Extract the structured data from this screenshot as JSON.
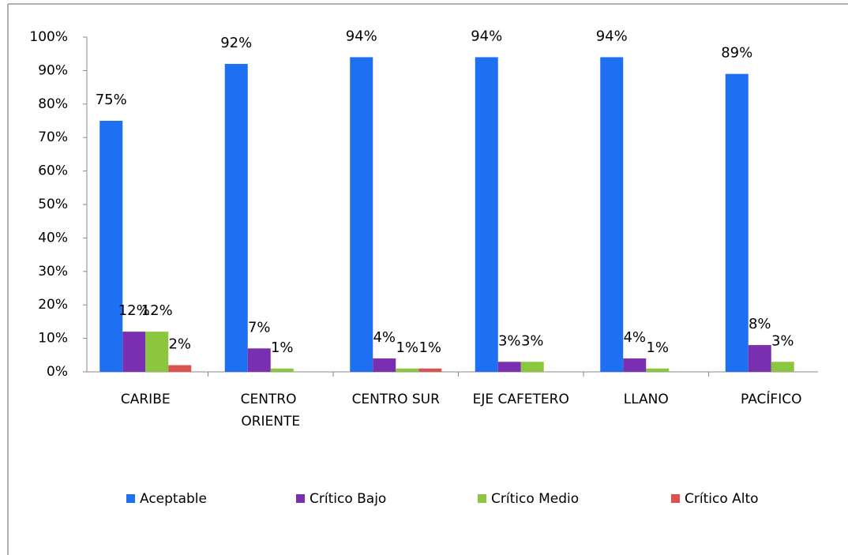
{
  "chart_data": {
    "type": "bar",
    "categories": [
      "CARIBE",
      "CENTRO ORIENTE",
      "CENTRO SUR",
      "EJE CAFETERO",
      "LLANO",
      "PACÍFICO"
    ],
    "series": [
      {
        "name": "Aceptable",
        "color": "#1f6ff2",
        "values": [
          75,
          92,
          94,
          94,
          94,
          89
        ],
        "value_labels": [
          "75%",
          "92%",
          "94%",
          "94%",
          "94%",
          "89%"
        ]
      },
      {
        "name": "Crítico Bajo",
        "color": "#7a2fb0",
        "values": [
          12,
          7,
          4,
          3,
          4,
          8
        ],
        "value_labels": [
          "12%",
          "7%",
          "4%",
          "3%",
          "4%",
          "8%"
        ]
      },
      {
        "name": "Crítico Medio",
        "color": "#8cc63f",
        "values": [
          12,
          1,
          1,
          3,
          1,
          3
        ],
        "value_labels": [
          "12%",
          "1%",
          "1%",
          "3%",
          "1%",
          "3%"
        ]
      },
      {
        "name": "Crítico Alto",
        "color": "#d9534f",
        "values": [
          2,
          null,
          1,
          null,
          null,
          null
        ],
        "value_labels": [
          "2%",
          null,
          "1%",
          null,
          null,
          null
        ]
      }
    ],
    "ylim": [
      0,
      100
    ],
    "yticks": [
      {
        "value": 0,
        "label": "0%"
      },
      {
        "value": 10,
        "label": "10%"
      },
      {
        "value": 20,
        "label": "20%"
      },
      {
        "value": 30,
        "label": "30%"
      },
      {
        "value": 40,
        "label": "40%"
      },
      {
        "value": 50,
        "label": "50%"
      },
      {
        "value": 60,
        "label": "60%"
      },
      {
        "value": 70,
        "label": "70%"
      },
      {
        "value": 80,
        "label": "80%"
      },
      {
        "value": 90,
        "label": "90%"
      },
      {
        "value": 100,
        "label": "100%"
      }
    ],
    "grid": false,
    "legend": "bottom"
  }
}
